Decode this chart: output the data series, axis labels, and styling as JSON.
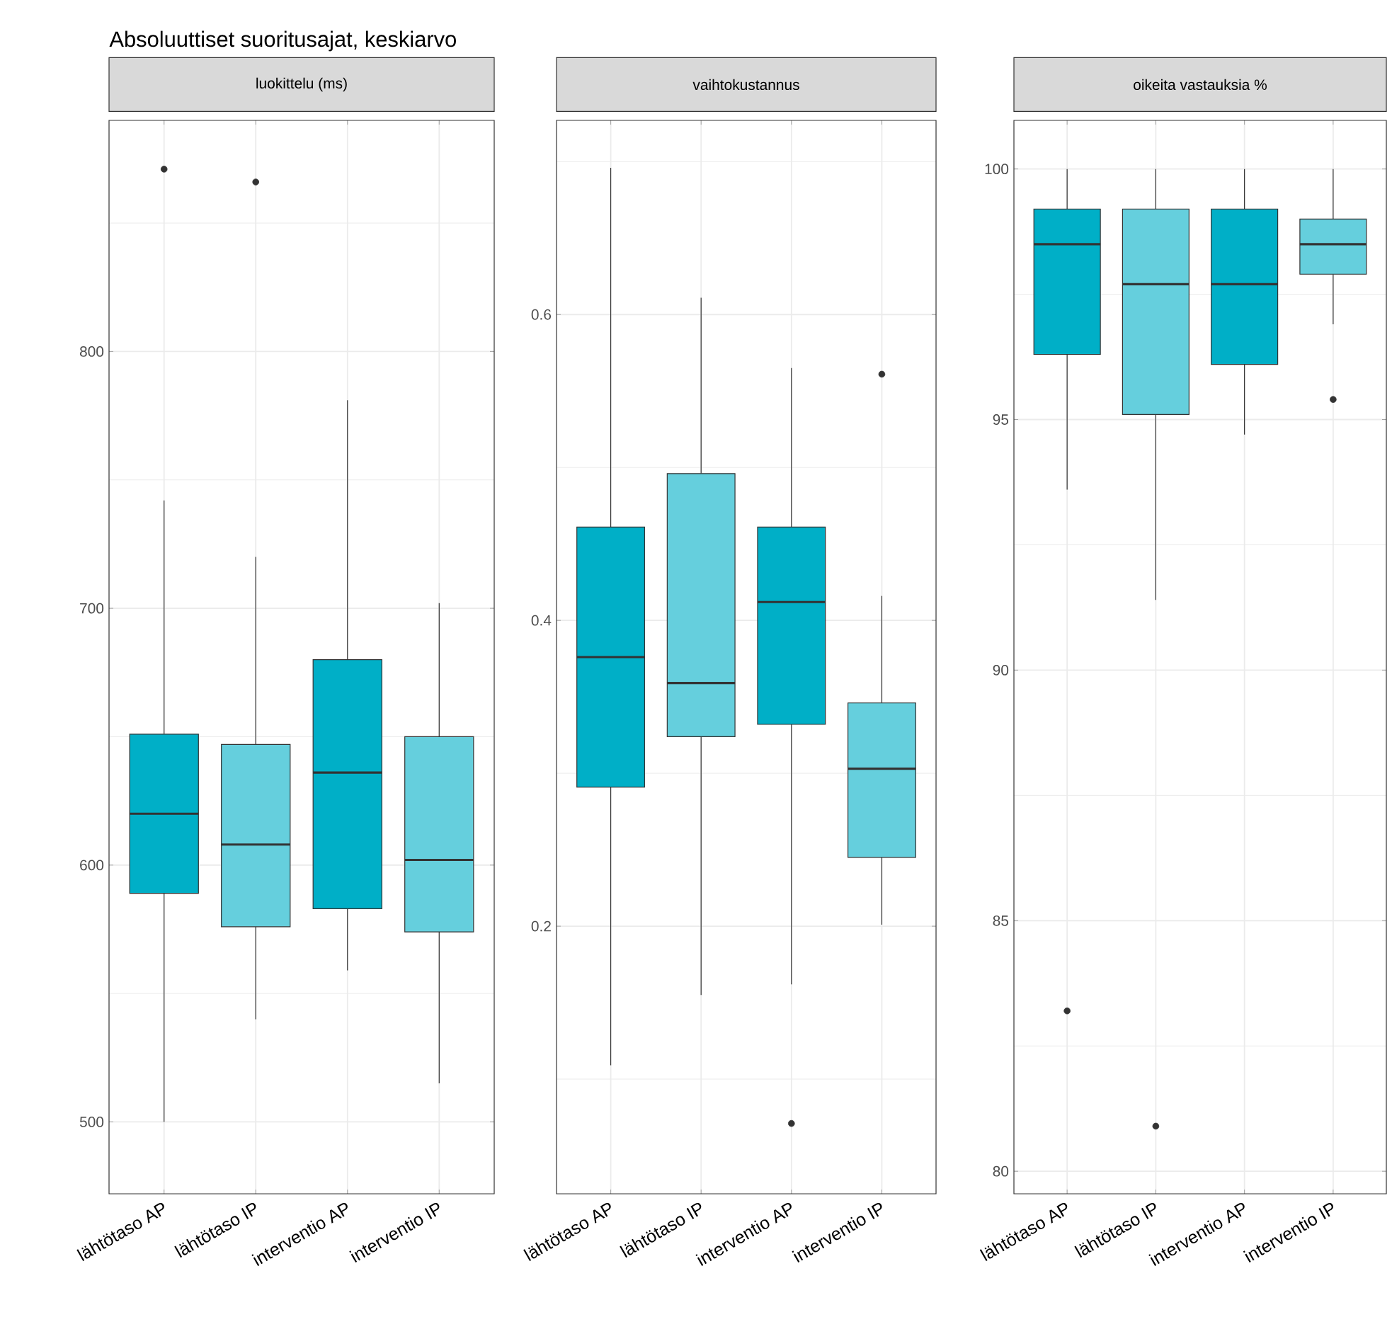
{
  "chart_data": [
    {
      "type": "box",
      "title": "luokittelu (ms)",
      "annotations": [
        "Absoluuttiset suoritusajat, keskiarvo"
      ],
      "categories": [
        "lähtötaso AP",
        "lähtötaso IP",
        "interventio AP",
        "interventio IP"
      ],
      "colors": [
        "#00afc7",
        "#65cfdd",
        "#00afc7",
        "#65cfdd"
      ],
      "boxes": [
        {
          "low": 500,
          "q1": 589,
          "median": 620,
          "q3": 651,
          "high": 742,
          "outliers": [
            871
          ]
        },
        {
          "low": 540,
          "q1": 576,
          "median": 608,
          "q3": 647,
          "high": 720,
          "outliers": [
            866
          ]
        },
        {
          "low": 559,
          "q1": 583,
          "median": 636,
          "q3": 680,
          "high": 781
        },
        {
          "low": 515,
          "q1": 574,
          "median": 602,
          "q3": 650,
          "high": 702
        }
      ],
      "ylim": [
        472,
        890
      ],
      "yticks": [
        500,
        600,
        700,
        800
      ],
      "grid": true
    },
    {
      "type": "box",
      "title": "vaihtokustannus",
      "categories": [
        "lähtötaso AP",
        "lähtötaso IP",
        "interventio AP",
        "interventio IP"
      ],
      "colors": [
        "#00afc7",
        "#65cfdd",
        "#00afc7",
        "#65cfdd"
      ],
      "boxes": [
        {
          "low": 0.109,
          "q1": 0.291,
          "median": 0.376,
          "q3": 0.461,
          "high": 0.696
        },
        {
          "low": 0.155,
          "q1": 0.324,
          "median": 0.359,
          "q3": 0.496,
          "high": 0.611
        },
        {
          "low": 0.162,
          "q1": 0.332,
          "median": 0.412,
          "q3": 0.461,
          "high": 0.565,
          "outliers": [
            0.071
          ]
        },
        {
          "low": 0.201,
          "q1": 0.245,
          "median": 0.303,
          "q3": 0.346,
          "high": 0.416,
          "outliers": [
            0.561
          ]
        }
      ],
      "ylim": [
        0.025,
        0.727
      ],
      "yticks": [
        0.2,
        0.4,
        0.6
      ],
      "grid": true
    },
    {
      "type": "box",
      "title": "oikeita vastauksia %",
      "categories": [
        "lähtötaso AP",
        "lähtötaso IP",
        "interventio AP",
        "interventio IP"
      ],
      "colors": [
        "#00afc7",
        "#65cfdd",
        "#00afc7",
        "#65cfdd"
      ],
      "boxes": [
        {
          "low": 93.6,
          "q1": 96.3,
          "median": 98.5,
          "q3": 99.2,
          "high": 100,
          "outliers": [
            83.2
          ]
        },
        {
          "low": 91.4,
          "q1": 95.1,
          "median": 97.7,
          "q3": 99.2,
          "high": 100,
          "outliers": [
            80.9
          ]
        },
        {
          "low": 94.7,
          "q1": 96.1,
          "median": 97.7,
          "q3": 99.2,
          "high": 100
        },
        {
          "low": 96.9,
          "q1": 97.9,
          "median": 98.5,
          "q3": 99.0,
          "high": 100,
          "outliers": [
            95.4
          ]
        }
      ],
      "ylim": [
        79.55,
        100.97
      ],
      "yticks": [
        80,
        85,
        90,
        95,
        100
      ],
      "grid": true
    }
  ]
}
